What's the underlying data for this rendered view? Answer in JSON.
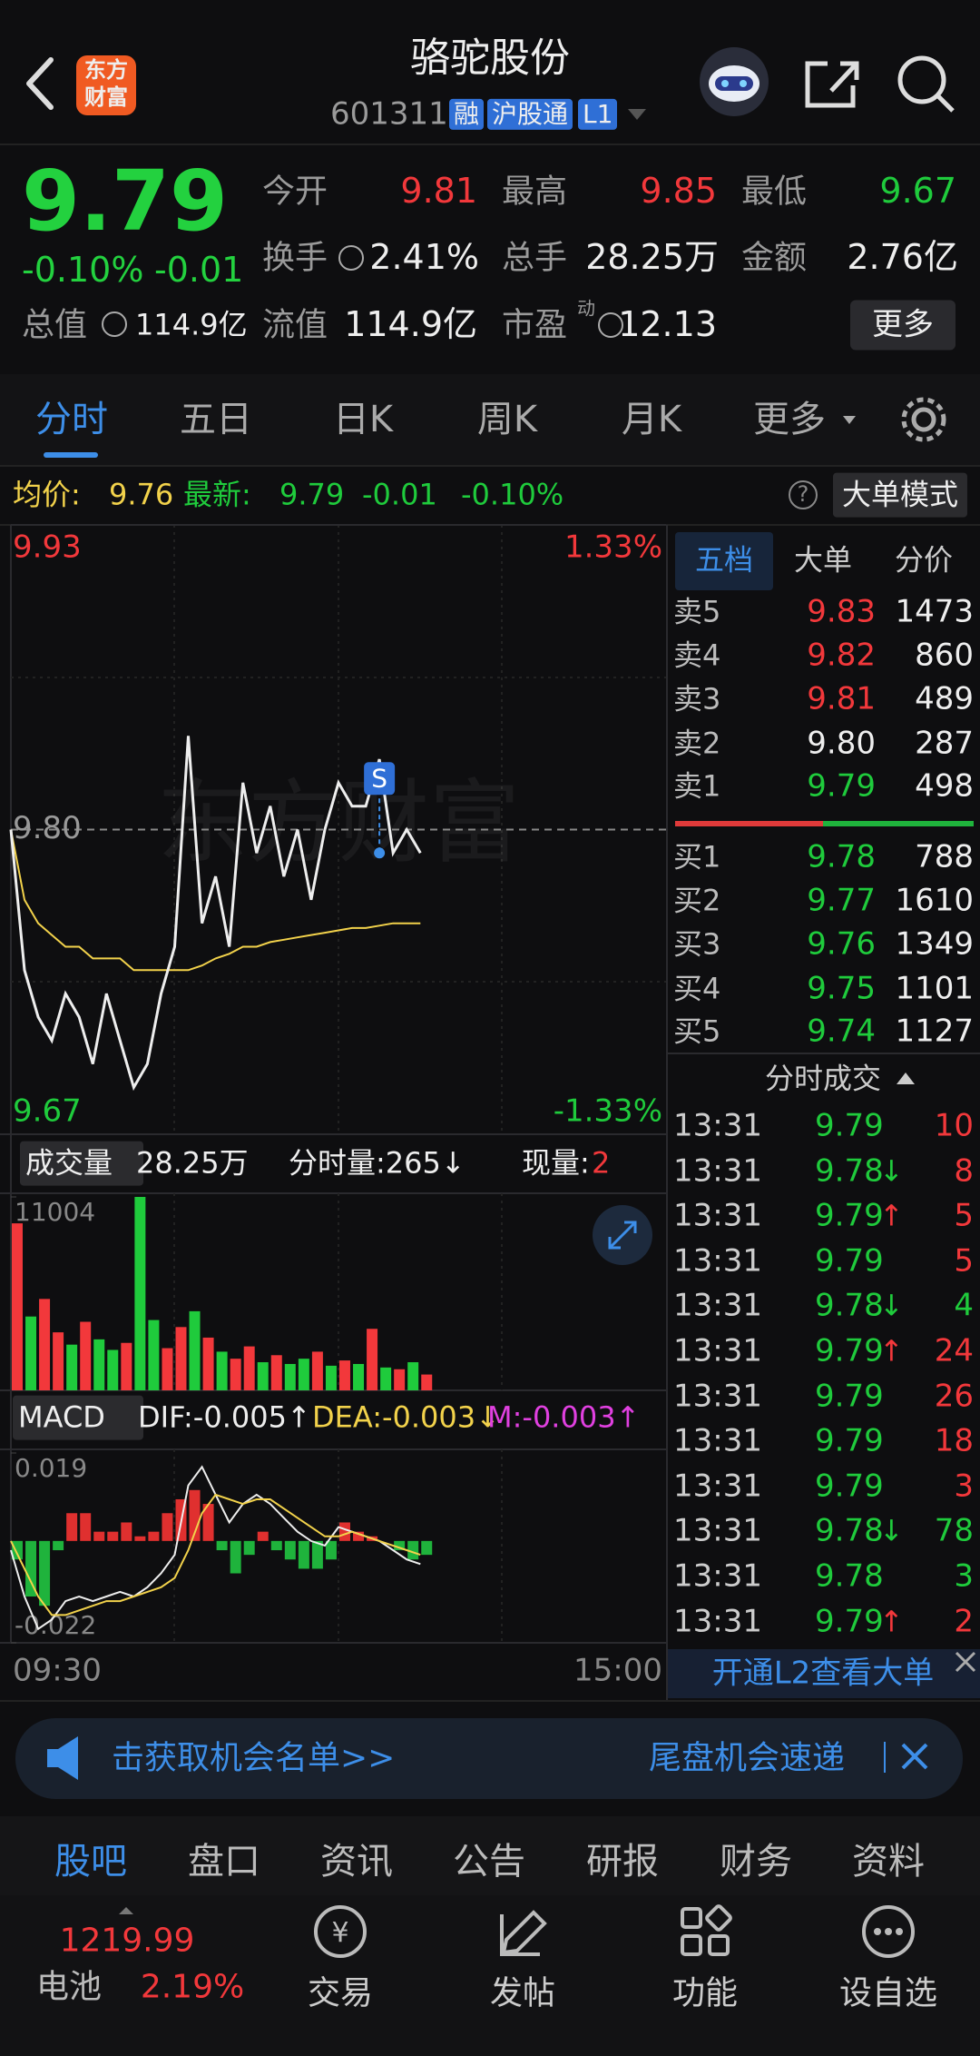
{
  "header": {
    "logo": [
      "东方",
      "财富"
    ],
    "title": "骆驼股份",
    "code": "601311",
    "tags": [
      "融",
      "沪股通",
      "L1"
    ]
  },
  "quote": {
    "price": "9.79",
    "change_pct": "-0.10%",
    "change": "-0.01",
    "total_value_label": "总值",
    "total_value": "114.9亿",
    "fields": [
      {
        "label": "今开",
        "value": "9.81"
      },
      {
        "label": "最高",
        "value": "9.85"
      },
      {
        "label": "最低",
        "value": "9.67"
      },
      {
        "label": "换手",
        "value": "2.41%"
      },
      {
        "label": "总手",
        "value": "28.25万"
      },
      {
        "label": "金额",
        "value": "2.76亿"
      },
      {
        "label": "流值",
        "value": "114.9亿"
      },
      {
        "label": "市盈",
        "value": "12.13"
      }
    ],
    "pe_sup": "动",
    "more": "更多"
  },
  "tabs": [
    "分时",
    "五日",
    "日K",
    "周K",
    "月K",
    "更多"
  ],
  "info": {
    "avg": "9.76",
    "latest": "9.79",
    "change": "-0.01",
    "change_pct": "-0.10%",
    "help": "?",
    "mode": "大单模式"
  },
  "chart_data": [
    {
      "type": "line",
      "x": [
        0,
        5,
        10,
        15,
        20,
        25,
        30,
        35,
        40,
        45,
        50,
        55,
        60,
        65,
        70,
        75,
        80,
        85,
        90,
        95,
        100,
        105,
        110,
        115,
        120,
        125,
        130,
        135,
        140,
        145,
        150
      ],
      "xlim": [
        0,
        240
      ],
      "xticks": [
        {
          "value": 0,
          "label": "09:30"
        },
        {
          "value": 240,
          "label": "15:00"
        }
      ],
      "ylim": [
        9.67,
        9.93
      ],
      "yticks": [
        9.93,
        {
          "value": 9.8,
          "label": "9.80"
        },
        9.67
      ],
      "y2lim": [
        -1.33,
        1.33
      ],
      "y2ticks": [
        {
          "value": 1.33,
          "label": "1.33%"
        },
        {
          "value": -1.33,
          "label": "-1.33%"
        }
      ],
      "series": [
        {
          "name": "最新:",
          "color": "#eeeeee",
          "values": [
            9.8,
            9.74,
            9.72,
            9.71,
            9.73,
            9.72,
            9.7,
            9.73,
            9.71,
            9.69,
            9.7,
            9.73,
            9.75,
            9.84,
            9.76,
            9.78,
            9.75,
            9.82,
            9.79,
            9.81,
            9.78,
            9.8,
            9.77,
            9.8,
            9.82,
            9.81,
            9.81,
            9.83,
            9.79,
            9.8,
            9.79
          ]
        },
        {
          "name": "均价:",
          "color": "#f2d24b",
          "values": [
            9.8,
            9.77,
            9.76,
            9.755,
            9.75,
            9.75,
            9.745,
            9.745,
            9.745,
            9.74,
            9.74,
            9.74,
            9.74,
            9.74,
            9.742,
            9.745,
            9.747,
            9.75,
            9.75,
            9.752,
            9.753,
            9.754,
            9.755,
            9.756,
            9.757,
            9.758,
            9.758,
            9.759,
            9.76,
            9.76,
            9.76
          ]
        }
      ],
      "annotation": {
        "text": "S",
        "x": 135,
        "y": 9.79
      },
      "watermark": "东方财富"
    },
    {
      "type": "bar",
      "label": "成交量",
      "total": "28.25万",
      "minute_volume": "分时量:265↓",
      "current_label": "现量:",
      "current": "2",
      "x": [
        0,
        5,
        10,
        15,
        20,
        25,
        30,
        35,
        40,
        45,
        50,
        55,
        60,
        65,
        70,
        75,
        80,
        85,
        90,
        95,
        100,
        105,
        110,
        115,
        120,
        125,
        130,
        135,
        140,
        145,
        150
      ],
      "values": [
        9500,
        4200,
        5200,
        3300,
        2600,
        3900,
        2900,
        2300,
        2700,
        11004,
        4000,
        2400,
        3600,
        4500,
        3000,
        2200,
        1800,
        2500,
        1600,
        2000,
        1500,
        1800,
        2200,
        1400,
        1700,
        1500,
        3500,
        1300,
        1200,
        1600,
        900
      ],
      "colors": [
        "#f2383b",
        "#1fcb3c",
        "#f2383b",
        "#f2383b",
        "#1fcb3c",
        "#f2383b",
        "#1fcb3c",
        "#1fcb3c",
        "#f2383b",
        "#1fcb3c",
        "#1fcb3c",
        "#f2383b",
        "#f2383b",
        "#1fcb3c",
        "#f2383b",
        "#1fcb3c",
        "#f2383b",
        "#f2383b",
        "#1fcb3c",
        "#f2383b",
        "#1fcb3c",
        "#1fcb3c",
        "#f2383b",
        "#1fcb3c",
        "#f2383b",
        "#1fcb3c",
        "#f2383b",
        "#1fcb3c",
        "#f2383b",
        "#1fcb3c",
        "#f2383b"
      ],
      "ylim": [
        0,
        11004
      ],
      "yticks": [
        11004
      ]
    },
    {
      "type": "macd",
      "label": "MACD",
      "legend": [
        "DIF:-0.005↑",
        "DEA:-0.003↓",
        "M:-0.003↑"
      ],
      "x": [
        0,
        5,
        10,
        15,
        20,
        25,
        30,
        35,
        40,
        45,
        50,
        55,
        60,
        65,
        70,
        75,
        80,
        85,
        90,
        95,
        100,
        105,
        110,
        115,
        120,
        125,
        130,
        135,
        140,
        145,
        150
      ],
      "ylim": [
        -0.022,
        0.019
      ],
      "yticks": [
        0.019,
        -0.022
      ],
      "series": [
        {
          "color": "#eeeeee",
          "values": [
            -0.002,
            -0.012,
            -0.019,
            -0.017,
            -0.013,
            -0.012,
            -0.013,
            -0.012,
            -0.011,
            -0.012,
            -0.01,
            -0.007,
            -0.003,
            0.012,
            0.016,
            0.01,
            0.004,
            0.008,
            0.01,
            0.008,
            0.005,
            0.002,
            0,
            -0.001,
            0.003,
            0.002,
            0.001,
            0,
            -0.002,
            -0.004,
            -0.005
          ]
        },
        {
          "color": "#f2d24b",
          "values": [
            0,
            -0.006,
            -0.012,
            -0.016,
            -0.016,
            -0.015,
            -0.014,
            -0.013,
            -0.013,
            -0.012,
            -0.011,
            -0.01,
            -0.008,
            -0.002,
            0.006,
            0.01,
            0.009,
            0.008,
            0.009,
            0.009,
            0.007,
            0.005,
            0.003,
            0.001,
            0.001,
            0.002,
            0.001,
            0,
            -0.001,
            -0.002,
            -0.003
          ]
        },
        {
          "values": [
            -0.004,
            -0.012,
            -0.014,
            -0.002,
            0.006,
            0.006,
            0.002,
            0.002,
            0.004,
            0.001,
            0.002,
            0.006,
            0.009,
            0.011,
            0.008,
            -0.002,
            -0.007,
            -0.003,
            0.002,
            -0.002,
            -0.004,
            -0.006,
            -0.006,
            -0.004,
            0.004,
            0.002,
            0.001,
            0,
            -0.002,
            -0.004,
            -0.003
          ]
        }
      ]
    }
  ],
  "order_book": {
    "tabs": [
      "五档",
      "大单",
      "分价"
    ],
    "asks": [
      {
        "label": "卖5",
        "price": "9.83",
        "volume": "1473"
      },
      {
        "label": "卖4",
        "price": "9.82",
        "volume": "860"
      },
      {
        "label": "卖3",
        "price": "9.81",
        "volume": "489"
      },
      {
        "label": "卖2",
        "price": "9.80",
        "volume": "287"
      },
      {
        "label": "卖1",
        "price": "9.79",
        "volume": "498"
      }
    ],
    "bids": [
      {
        "label": "买1",
        "price": "9.78",
        "volume": "788"
      },
      {
        "label": "买2",
        "price": "9.77",
        "volume": "1610"
      },
      {
        "label": "买3",
        "price": "9.76",
        "volume": "1349"
      },
      {
        "label": "买4",
        "price": "9.75",
        "volume": "1101"
      },
      {
        "label": "买5",
        "price": "9.74",
        "volume": "1127"
      }
    ]
  },
  "trades": {
    "title": "分时成交",
    "rows": [
      {
        "time": "13:31",
        "price": "9.79",
        "dir": "",
        "volume": "10",
        "color": "#f2383b"
      },
      {
        "time": "13:31",
        "price": "9.78",
        "dir": "↓",
        "volume": "8",
        "color": "#f2383b"
      },
      {
        "time": "13:31",
        "price": "9.79",
        "dir": "↑",
        "volume": "5",
        "color": "#f2383b"
      },
      {
        "time": "13:31",
        "price": "9.79",
        "dir": "",
        "volume": "5",
        "color": "#f2383b"
      },
      {
        "time": "13:31",
        "price": "9.78",
        "dir": "↓",
        "volume": "4",
        "color": "#1fcb3c"
      },
      {
        "time": "13:31",
        "price": "9.79",
        "dir": "↑",
        "volume": "24",
        "color": "#f2383b"
      },
      {
        "time": "13:31",
        "price": "9.79",
        "dir": "",
        "volume": "26",
        "color": "#f2383b"
      },
      {
        "time": "13:31",
        "price": "9.79",
        "dir": "",
        "volume": "18",
        "color": "#f2383b"
      },
      {
        "time": "13:31",
        "price": "9.79",
        "dir": "",
        "volume": "3",
        "color": "#f2383b"
      },
      {
        "time": "13:31",
        "price": "9.78",
        "dir": "↓",
        "volume": "78",
        "color": "#1fcb3c"
      },
      {
        "time": "13:31",
        "price": "9.78",
        "dir": "",
        "volume": "3",
        "color": "#1fcb3c"
      },
      {
        "time": "13:31",
        "price": "9.79",
        "dir": "↑",
        "volume": "2",
        "color": "#f2383b"
      }
    ],
    "l2_banner": "开通L2查看大单"
  },
  "banner": {
    "left": "击获取机会名单>>",
    "right": "尾盘机会速递"
  },
  "bottom_tabs": [
    "股吧",
    "盘口",
    "资讯",
    "公告",
    "研报",
    "财务",
    "资料"
  ],
  "nav": {
    "index_value": "1219.99",
    "index_name": "电池",
    "index_change": "2.19%",
    "items": [
      "交易",
      "发帖",
      "功能",
      "设自选"
    ]
  }
}
